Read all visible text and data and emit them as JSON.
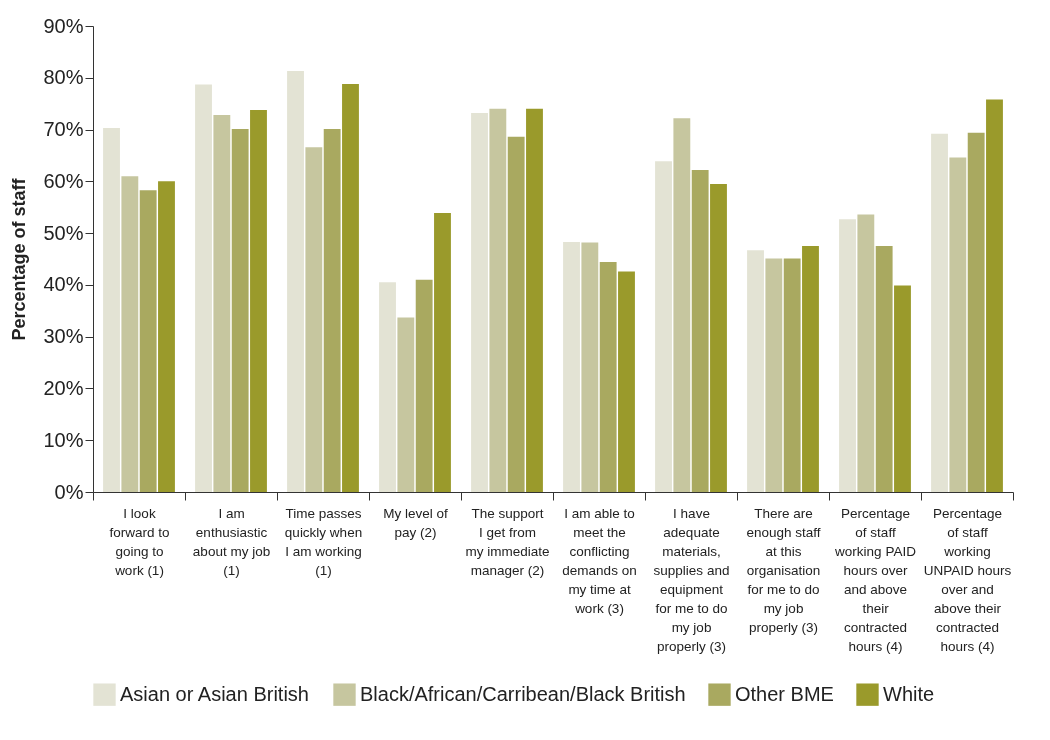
{
  "chart_data": {
    "type": "bar",
    "ylabel": "Percentage of staff",
    "categories": [
      "I look forward to going to work (1)",
      "I am enthusiastic about my job (1)",
      "Time passes quickly when I am working (1)",
      "My level of pay (2)",
      "The support I get from my immediate manager (2)",
      "I am able to meet the conflicting demands on my time at work (3)",
      "I have adequate materials, supplies and equipment for me to do my job properly (3)",
      "There are enough staff at this organisation for me to do my job properly (3)",
      "Percentage of staff working PAID hours over and above their contracted hours (4)",
      "Percentage of staff working UNPAID hours over and above their contracted hours (4)"
    ],
    "series": [
      {
        "name": "Asian or Asian British",
        "color": "#e3e3d4",
        "values": [
          70.3,
          78.7,
          81.3,
          40.5,
          73.2,
          48.3,
          63.9,
          46.7,
          52.7,
          69.2
        ]
      },
      {
        "name": "Black/African/Carribean/Black British",
        "color": "#c6c69f",
        "values": [
          61,
          72.8,
          66.6,
          33.7,
          74,
          48.2,
          72.2,
          45.1,
          53.6,
          64.6
        ]
      },
      {
        "name": "Other BME",
        "color": "#a9a960",
        "values": [
          58.3,
          70.1,
          70.1,
          41,
          68.6,
          44.4,
          62.2,
          45.1,
          47.5,
          69.4
        ]
      },
      {
        "name": "White",
        "color": "#9a9a2b",
        "values": [
          60,
          73.8,
          78.8,
          53.9,
          74,
          42.6,
          59.5,
          47.5,
          39.9,
          75.8
        ]
      }
    ],
    "ylim": [
      0,
      90
    ],
    "yticks": [
      {
        "value": 0,
        "label": "0%"
      },
      {
        "value": 10,
        "label": "10%"
      },
      {
        "value": 20,
        "label": "20%"
      },
      {
        "value": 30,
        "label": "30%"
      },
      {
        "value": 40,
        "label": "40%"
      },
      {
        "value": 50,
        "label": "50%"
      },
      {
        "value": 60,
        "label": "60%"
      },
      {
        "value": 70,
        "label": "70%"
      },
      {
        "value": 80,
        "label": "80%"
      },
      {
        "value": 90,
        "label": "90%"
      }
    ],
    "grid": false,
    "legend": "bottom"
  }
}
